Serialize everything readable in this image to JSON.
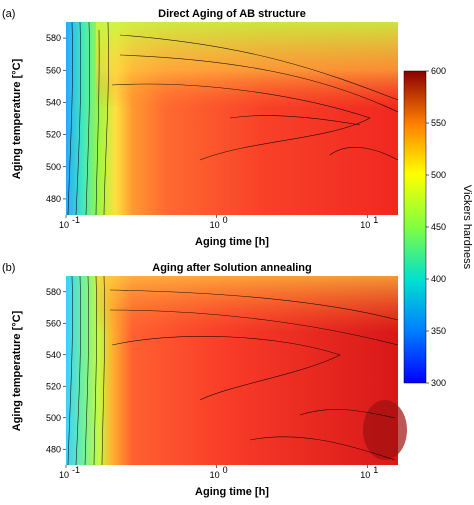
{
  "chart_data": {
    "type": "heatmap",
    "colorbar": {
      "label": "Vickers hardness",
      "range": [
        300,
        600
      ],
      "ticks": [
        "600",
        "550",
        "500",
        "450",
        "400",
        "350",
        "300"
      ]
    },
    "panels": [
      {
        "panel_label": "(a)",
        "title": "Direct Aging of AB structure",
        "xlabel": "Aging time [h]",
        "ylabel": "Aging temperature [°C]",
        "xscale": "log",
        "xlim": [
          0.1,
          16
        ],
        "ylim": [
          470,
          590
        ],
        "xticks": [
          "10",
          "10",
          "10"
        ],
        "xtick_exponents": [
          "-1",
          "0",
          "1"
        ],
        "yticks": [
          "480",
          "500",
          "520",
          "540",
          "560",
          "580"
        ],
        "hardness_range_shown": [
          375,
          575
        ]
      },
      {
        "panel_label": "(b)",
        "title": "Aging after Solution annealing",
        "xlabel": "Aging time [h]",
        "ylabel": "Aging temperature [°C]",
        "xscale": "log",
        "xlim": [
          0.1,
          16
        ],
        "ylim": [
          470,
          590
        ],
        "xticks": [
          "10",
          "10",
          "10"
        ],
        "xtick_exponents": [
          "-1",
          "0",
          "1"
        ],
        "yticks": [
          "480",
          "500",
          "520",
          "540",
          "560",
          "580"
        ],
        "hardness_range_shown": [
          375,
          590
        ]
      }
    ]
  }
}
